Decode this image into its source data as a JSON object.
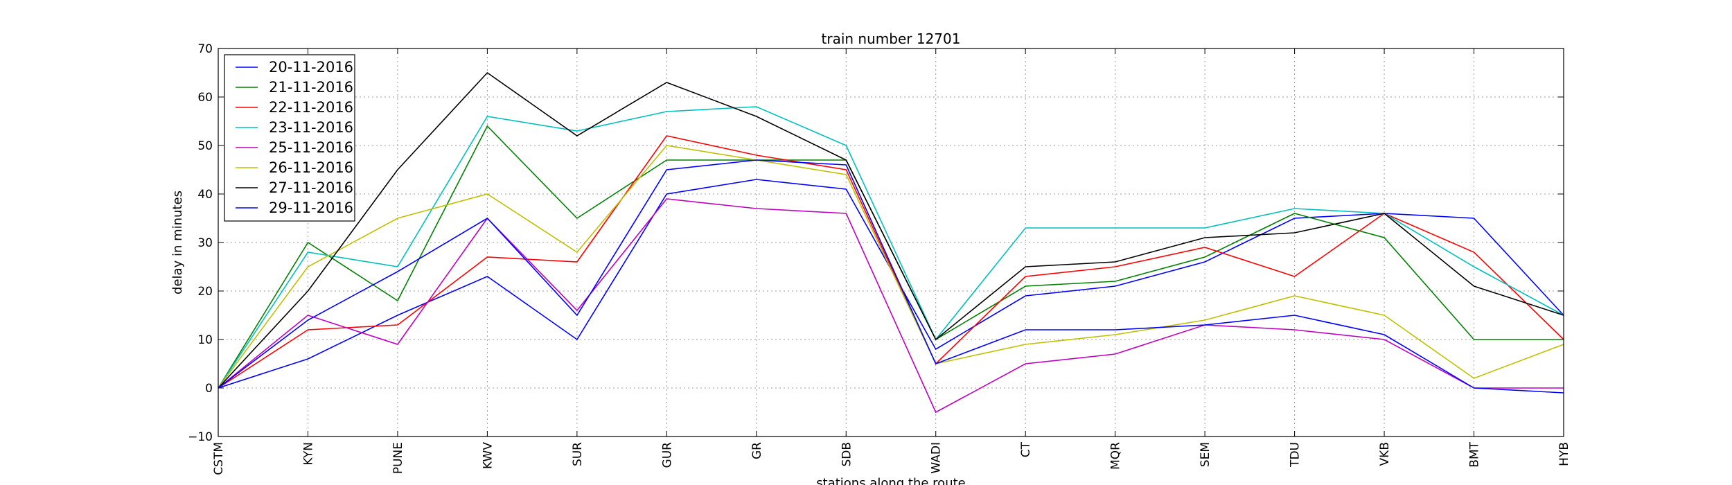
{
  "chart_data": {
    "type": "line",
    "title": "train number 12701",
    "xlabel": "stations along the route",
    "ylabel": "delay in minutes",
    "categories": [
      "CSTM",
      "KYN",
      "PUNE",
      "KWV",
      "SUR",
      "GUR",
      "GR",
      "SDB",
      "WADI",
      "CT",
      "MQR",
      "SEM",
      "TDU",
      "VKB",
      "BMT",
      "HYB"
    ],
    "ylim": [
      -10,
      70
    ],
    "yticks": [
      -10,
      0,
      10,
      20,
      30,
      40,
      50,
      60,
      70
    ],
    "grid": true,
    "legend_position": "top-left",
    "series": [
      {
        "name": "20-11-2016",
        "color": "#0000ff",
        "values": [
          0,
          6,
          15,
          23,
          10,
          40,
          43,
          41,
          8,
          19,
          21,
          26,
          35,
          36,
          35,
          15
        ]
      },
      {
        "name": "21-11-2016",
        "color": "#008000",
        "values": [
          0,
          30,
          18,
          54,
          35,
          47,
          47,
          47,
          10,
          21,
          22,
          27,
          36,
          31,
          10,
          10
        ]
      },
      {
        "name": "22-11-2016",
        "color": "#ff0000",
        "values": [
          0,
          12,
          13,
          27,
          26,
          52,
          48,
          45,
          5,
          23,
          25,
          29,
          23,
          36,
          28,
          10
        ]
      },
      {
        "name": "23-11-2016",
        "color": "#00bfbf",
        "values": [
          0,
          28,
          25,
          56,
          53,
          57,
          58,
          50,
          10,
          33,
          33,
          33,
          37,
          36,
          25,
          15
        ]
      },
      {
        "name": "25-11-2016",
        "color": "#bf00bf",
        "values": [
          0,
          15,
          9,
          35,
          16,
          39,
          37,
          36,
          -5,
          5,
          7,
          13,
          12,
          10,
          0,
          0
        ]
      },
      {
        "name": "26-11-2016",
        "color": "#bfbf00",
        "values": [
          0,
          25,
          35,
          40,
          28,
          50,
          47,
          44,
          5,
          9,
          11,
          14,
          19,
          15,
          2,
          9
        ]
      },
      {
        "name": "27-11-2016",
        "color": "#000000",
        "values": [
          0,
          20,
          45,
          65,
          52,
          63,
          56,
          47,
          10,
          25,
          26,
          31,
          32,
          36,
          21,
          15
        ]
      },
      {
        "name": "29-11-2016",
        "color": "#0000ff",
        "values": [
          0,
          14,
          24,
          35,
          15,
          45,
          47,
          46,
          5,
          12,
          12,
          13,
          15,
          11,
          0,
          -1
        ]
      }
    ]
  }
}
